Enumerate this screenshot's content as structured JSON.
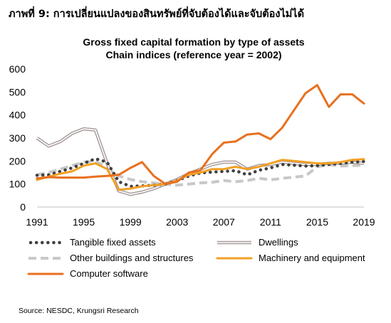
{
  "figure_title": "ภาพที่ 9: การเปลี่ยนแปลงของสินทรัพย์ที่จับต้องได้และจับต้องไม่ได้",
  "source": "Source: NESDC, Krungsri Research",
  "chart_data": {
    "type": "line",
    "title": "Gross fixed capital formation by type of assets",
    "subtitle": "Chain indices (reference year = 2002)",
    "xlabel": "",
    "ylabel": "",
    "xlim": [
      1991,
      2019
    ],
    "ylim": [
      0,
      600
    ],
    "x_ticks": [
      "1991",
      "1995",
      "1999",
      "2003",
      "2007",
      "2011",
      "2015",
      "2019"
    ],
    "y_ticks": [
      "0",
      "100",
      "200",
      "300",
      "400",
      "500",
      "600"
    ],
    "grid": false,
    "legend_position": "bottom",
    "x": [
      1991,
      1992,
      1993,
      1994,
      1995,
      1996,
      1997,
      1998,
      1999,
      2000,
      2001,
      2002,
      2003,
      2004,
      2005,
      2006,
      2007,
      2008,
      2009,
      2010,
      2011,
      2012,
      2013,
      2014,
      2015,
      2016,
      2017,
      2018,
      2019
    ],
    "series": [
      {
        "name": "Tangible fixed assets",
        "color": "#404040",
        "style": "dotted",
        "values": [
          138,
          140,
          155,
          170,
          190,
          210,
          195,
          110,
          90,
          92,
          95,
          100,
          115,
          135,
          148,
          152,
          155,
          158,
          140,
          160,
          170,
          185,
          182,
          178,
          180,
          185,
          190,
          195,
          198
        ]
      },
      {
        "name": "Dwellings",
        "color": "#a89b9b",
        "style": "double",
        "values": [
          300,
          265,
          285,
          320,
          340,
          335,
          190,
          70,
          55,
          65,
          80,
          100,
          120,
          145,
          165,
          185,
          195,
          195,
          165,
          180,
          185,
          195,
          190,
          185,
          185,
          190,
          190,
          195,
          190
        ]
      },
      {
        "name": "Other buildings and structures",
        "color": "#c8c8c8",
        "style": "dashed",
        "values": [
          140,
          150,
          165,
          180,
          195,
          200,
          170,
          135,
          120,
          110,
          105,
          100,
          95,
          100,
          105,
          108,
          115,
          110,
          115,
          125,
          118,
          125,
          130,
          135,
          175,
          185,
          178,
          180,
          182
        ]
      },
      {
        "name": "Machinery and equipment",
        "color": "#f2a024",
        "style": "solid",
        "values": [
          118,
          132,
          145,
          155,
          180,
          190,
          165,
          75,
          80,
          90,
          95,
          100,
          115,
          140,
          150,
          165,
          165,
          175,
          165,
          175,
          190,
          205,
          200,
          195,
          190,
          190,
          195,
          205,
          208
        ]
      },
      {
        "name": "Computer software",
        "color": "#e8701e",
        "style": "solid",
        "values": [
          125,
          130,
          128,
          128,
          128,
          132,
          135,
          140,
          170,
          195,
          135,
          100,
          110,
          150,
          160,
          230,
          280,
          285,
          315,
          320,
          295,
          345,
          420,
          495,
          530,
          435,
          490,
          490,
          450
        ]
      }
    ]
  }
}
